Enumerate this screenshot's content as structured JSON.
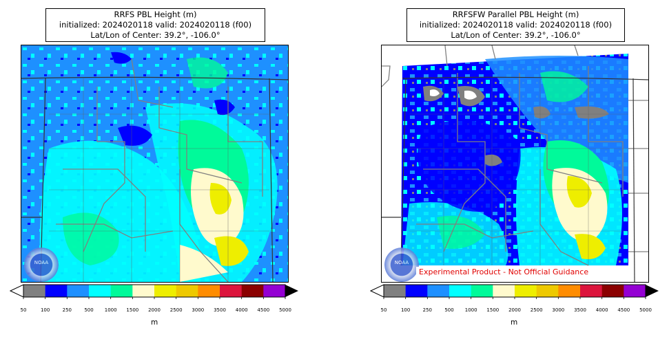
{
  "panels": [
    {
      "title": "RRFS PBL Height (m)",
      "line2": "initialized: 2024020118 valid: 2024020118 (f00)",
      "line3": "Lat/Lon of Center: 39.2°, -106.0°",
      "logo_text": "NOAA"
    },
    {
      "title": "RRFSFW Parallel PBL Height (m)",
      "line2": "initialized: 2024020118 valid: 2024020118 (f00)",
      "line3": "Lat/Lon of Center: 39.2°, -106.0°",
      "logo_text": "NOAA",
      "disclaimer": "Experimental Product - Not Official Guidance"
    }
  ],
  "colorbar": {
    "unit": "m",
    "ticks": [
      "50",
      "100",
      "250",
      "500",
      "1000",
      "1500",
      "2000",
      "2500",
      "3000",
      "3500",
      "4000",
      "4500",
      "5000"
    ],
    "colors": [
      "#808080",
      "#0000ff",
      "#1e90ff",
      "#00ffff",
      "#00fa9a",
      "#fffacd",
      "#eeee00",
      "#eec900",
      "#ff8c00",
      "#dc143c",
      "#8b0000",
      "#9400d3"
    ],
    "under_color": "#ffffff",
    "over_color": "#000000"
  }
}
